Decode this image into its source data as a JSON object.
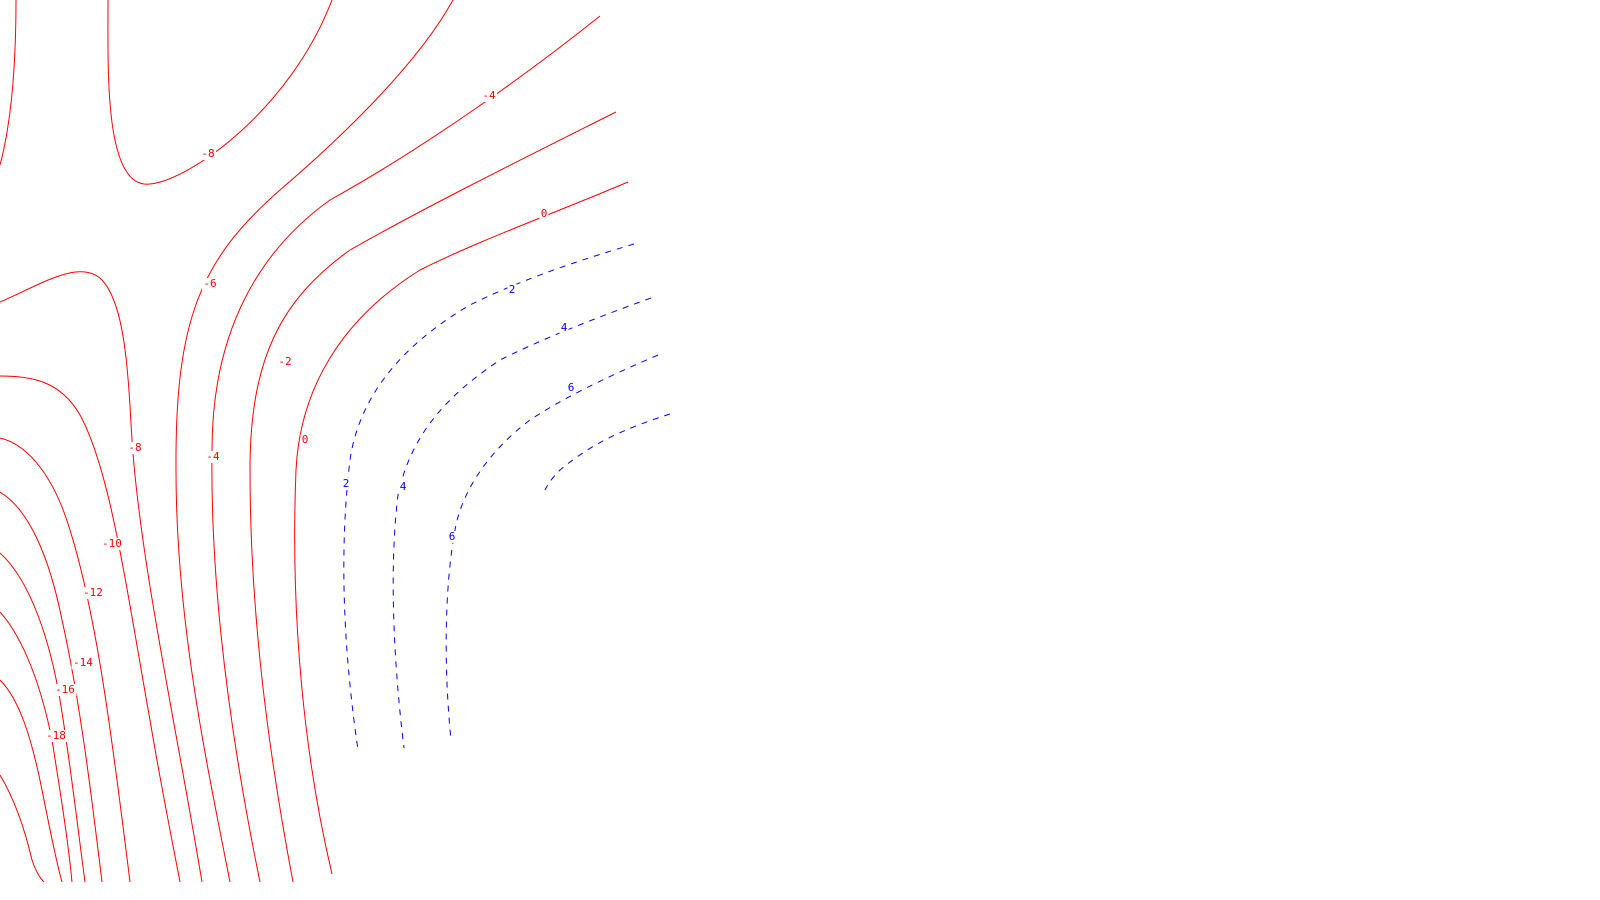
{
  "chart_data": {
    "type": "contour",
    "title": "",
    "xlabel": "",
    "ylabel": "",
    "grid": false,
    "legend": "none",
    "colors": {
      "negative_and_zero": "#ff0000",
      "positive": "#0000ff"
    },
    "line_styles": {
      "negative_and_zero": "solid",
      "positive": "dashed"
    },
    "levels": [
      -18,
      -16,
      -14,
      -12,
      -10,
      -8,
      -6,
      -4,
      -2,
      0,
      2,
      4,
      6,
      8
    ],
    "labels": [
      "-8",
      "-4",
      "0",
      "2",
      "4",
      "6",
      "-6",
      "-2",
      "-8",
      "-4",
      "0",
      "2",
      "4",
      "6",
      "-10",
      "-12",
      "-14",
      "-16",
      "-18"
    ]
  }
}
